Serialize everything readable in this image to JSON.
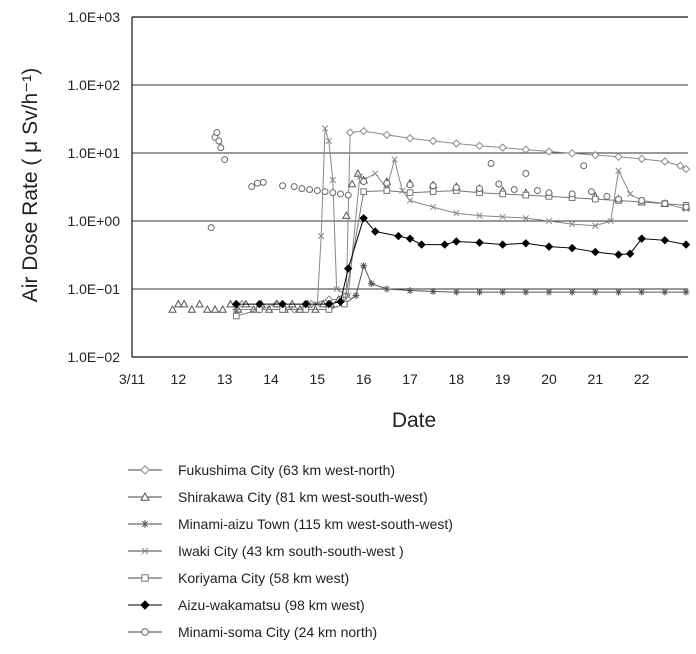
{
  "chart_data": {
    "type": "scatter",
    "title": "",
    "xlabel": "Date",
    "ylabel": "Air Dose Rate ( μ Sv/h⁻¹)",
    "yscale": "log",
    "ylim": [
      "1.0E−02",
      "1.0E+03"
    ],
    "yticks": [
      {
        "label": "1.0E+03",
        "value": 1000
      },
      {
        "label": "1.0E+02",
        "value": 100
      },
      {
        "label": "1.0E+01",
        "value": 10
      },
      {
        "label": "1.0E+00",
        "value": 1
      },
      {
        "label": "1.0E−01",
        "value": 0.1
      },
      {
        "label": "1.0E−02",
        "value": 0.01
      }
    ],
    "xlim": [
      "2011-03-11",
      "2011-03-23"
    ],
    "xticks": [
      {
        "label": "3/11",
        "value": "2011-03-11"
      },
      {
        "label": "12",
        "value": "2011-03-12"
      },
      {
        "label": "13",
        "value": "2011-03-13"
      },
      {
        "label": "14",
        "value": "2011-03-14"
      },
      {
        "label": "15",
        "value": "2011-03-15"
      },
      {
        "label": "16",
        "value": "2011-03-16"
      },
      {
        "label": "17",
        "value": "2011-03-17"
      },
      {
        "label": "18",
        "value": "2011-03-18"
      },
      {
        "label": "19",
        "value": "2011-03-19"
      },
      {
        "label": "20",
        "value": "2011-03-20"
      },
      {
        "label": "21",
        "value": "2011-03-21"
      },
      {
        "label": "22",
        "value": "2011-03-22"
      }
    ],
    "grid": "horizontal",
    "legend_position": "bottom",
    "series": [
      {
        "name": "Fukushima City  (63 km west-north)",
        "marker": "diamond",
        "line": true,
        "color": "#8a8a8a",
        "points": [
          [
            "2011-03-13 09:00",
            0.06
          ],
          [
            "2011-03-13 18:00",
            0.05
          ],
          [
            "2011-03-14 03:00",
            0.06
          ],
          [
            "2011-03-14 12:00",
            0.05
          ],
          [
            "2011-03-14 21:00",
            0.06
          ],
          [
            "2011-03-15 06:00",
            0.07
          ],
          [
            "2011-03-15 12:00",
            0.07
          ],
          [
            "2011-03-15 15:00",
            0.08
          ],
          [
            "2011-03-15 17:00",
            20.0
          ],
          [
            "2011-03-16 00:00",
            21.0
          ],
          [
            "2011-03-16 12:00",
            18.5
          ],
          [
            "2011-03-17 00:00",
            16.5
          ],
          [
            "2011-03-17 12:00",
            15.0
          ],
          [
            "2011-03-18 00:00",
            13.8
          ],
          [
            "2011-03-18 12:00",
            12.8
          ],
          [
            "2011-03-19 00:00",
            12.0
          ],
          [
            "2011-03-19 12:00",
            11.2
          ],
          [
            "2011-03-20 00:00",
            10.5
          ],
          [
            "2011-03-20 12:00",
            9.9
          ],
          [
            "2011-03-21 00:00",
            9.3
          ],
          [
            "2011-03-21 12:00",
            8.8
          ],
          [
            "2011-03-22 00:00",
            8.2
          ],
          [
            "2011-03-22 12:00",
            7.5
          ],
          [
            "2011-03-22 20:00",
            6.5
          ],
          [
            "2011-03-22 23:00",
            5.8
          ]
        ]
      },
      {
        "name": "Shirakawa City  (81 km west-south-west)",
        "marker": "triangle",
        "line": false,
        "color": "#555555",
        "points": [
          [
            "2011-03-11 21:00",
            0.05
          ],
          [
            "2011-03-12 00:00",
            0.06
          ],
          [
            "2011-03-12 03:00",
            0.06
          ],
          [
            "2011-03-12 07:00",
            0.05
          ],
          [
            "2011-03-12 11:00",
            0.06
          ],
          [
            "2011-03-12 15:00",
            0.05
          ],
          [
            "2011-03-12 19:00",
            0.05
          ],
          [
            "2011-03-12 23:00",
            0.05
          ],
          [
            "2011-03-13 03:00",
            0.06
          ],
          [
            "2011-03-13 07:00",
            0.05
          ],
          [
            "2011-03-13 11:00",
            0.06
          ],
          [
            "2011-03-13 15:00",
            0.05
          ],
          [
            "2011-03-13 19:00",
            0.06
          ],
          [
            "2011-03-13 23:00",
            0.05
          ],
          [
            "2011-03-14 03:00",
            0.06
          ],
          [
            "2011-03-14 07:00",
            0.05
          ],
          [
            "2011-03-14 11:00",
            0.06
          ],
          [
            "2011-03-14 15:00",
            0.05
          ],
          [
            "2011-03-14 19:00",
            0.06
          ],
          [
            "2011-03-14 23:00",
            0.05
          ],
          [
            "2011-03-15 03:00",
            0.06
          ],
          [
            "2011-03-15 07:00",
            0.06
          ],
          [
            "2011-03-15 11:00",
            0.07
          ],
          [
            "2011-03-15 15:00",
            1.2
          ],
          [
            "2011-03-15 18:00",
            3.5
          ],
          [
            "2011-03-15 21:00",
            5.0
          ],
          [
            "2011-03-16 00:00",
            4.0
          ],
          [
            "2011-03-16 12:00",
            3.8
          ],
          [
            "2011-03-17 00:00",
            3.6
          ],
          [
            "2011-03-17 12:00",
            3.4
          ],
          [
            "2011-03-18 00:00",
            3.2
          ],
          [
            "2011-03-18 12:00",
            3.0
          ],
          [
            "2011-03-19 00:00",
            2.8
          ],
          [
            "2011-03-19 12:00",
            2.6
          ],
          [
            "2011-03-20 00:00",
            2.5
          ],
          [
            "2011-03-20 12:00",
            2.4
          ],
          [
            "2011-03-21 00:00",
            2.3
          ],
          [
            "2011-03-21 12:00",
            2.1
          ],
          [
            "2011-03-22 00:00",
            1.9
          ],
          [
            "2011-03-22 12:00",
            1.8
          ],
          [
            "2011-03-22 23:00",
            1.6
          ]
        ]
      },
      {
        "name": "Minami-aizu Town  (115 km west-south-west)",
        "marker": "asterisk",
        "line": true,
        "color": "#555555",
        "points": [
          [
            "2011-03-13 06:00",
            0.05
          ],
          [
            "2011-03-13 18:00",
            0.05
          ],
          [
            "2011-03-14 06:00",
            0.05
          ],
          [
            "2011-03-14 18:00",
            0.05
          ],
          [
            "2011-03-15 06:00",
            0.05
          ],
          [
            "2011-03-15 14:00",
            0.06
          ],
          [
            "2011-03-15 20:00",
            0.08
          ],
          [
            "2011-03-16 00:00",
            0.22
          ],
          [
            "2011-03-16 04:00",
            0.12
          ],
          [
            "2011-03-16 12:00",
            0.1
          ],
          [
            "2011-03-17 00:00",
            0.095
          ],
          [
            "2011-03-17 12:00",
            0.092
          ],
          [
            "2011-03-18 00:00",
            0.09
          ],
          [
            "2011-03-18 12:00",
            0.09
          ],
          [
            "2011-03-19 00:00",
            0.09
          ],
          [
            "2011-03-19 12:00",
            0.09
          ],
          [
            "2011-03-20 00:00",
            0.09
          ],
          [
            "2011-03-20 12:00",
            0.09
          ],
          [
            "2011-03-21 00:00",
            0.09
          ],
          [
            "2011-03-21 12:00",
            0.09
          ],
          [
            "2011-03-22 00:00",
            0.09
          ],
          [
            "2011-03-22 12:00",
            0.09
          ],
          [
            "2011-03-22 23:00",
            0.09
          ]
        ]
      },
      {
        "name": "Iwaki City  (43 km south-south-west )",
        "marker": "x",
        "line": true,
        "color": "#888888",
        "points": [
          [
            "2011-03-13 06:00",
            0.05
          ],
          [
            "2011-03-13 18:00",
            0.05
          ],
          [
            "2011-03-14 06:00",
            0.05
          ],
          [
            "2011-03-14 18:00",
            0.05
          ],
          [
            "2011-03-15 00:00",
            0.06
          ],
          [
            "2011-03-15 02:00",
            0.6
          ],
          [
            "2011-03-15 04:00",
            23.0
          ],
          [
            "2011-03-15 06:00",
            15.0
          ],
          [
            "2011-03-15 08:00",
            4.0
          ],
          [
            "2011-03-15 10:00",
            0.1
          ],
          [
            "2011-03-15 16:00",
            0.08
          ],
          [
            "2011-03-15 22:00",
            4.5
          ],
          [
            "2011-03-16 00:00",
            4.0
          ],
          [
            "2011-03-16 06:00",
            5.0
          ],
          [
            "2011-03-16 12:00",
            3.0
          ],
          [
            "2011-03-16 16:00",
            8.0
          ],
          [
            "2011-03-16 20:00",
            2.8
          ],
          [
            "2011-03-17 00:00",
            2.0
          ],
          [
            "2011-03-17 12:00",
            1.6
          ],
          [
            "2011-03-18 00:00",
            1.3
          ],
          [
            "2011-03-18 12:00",
            1.2
          ],
          [
            "2011-03-19 00:00",
            1.15
          ],
          [
            "2011-03-19 12:00",
            1.1
          ],
          [
            "2011-03-20 00:00",
            1.0
          ],
          [
            "2011-03-20 12:00",
            0.9
          ],
          [
            "2011-03-21 00:00",
            0.85
          ],
          [
            "2011-03-21 08:00",
            1.0
          ],
          [
            "2011-03-21 12:00",
            5.5
          ],
          [
            "2011-03-21 18:00",
            2.5
          ],
          [
            "2011-03-22 00:00",
            2.0
          ],
          [
            "2011-03-22 12:00",
            1.8
          ],
          [
            "2011-03-22 23:00",
            1.5
          ]
        ]
      },
      {
        "name": "Koriyama City  (58 km west)",
        "marker": "square",
        "line": true,
        "color": "#777777",
        "points": [
          [
            "2011-03-13 06:00",
            0.04
          ],
          [
            "2011-03-13 18:00",
            0.05
          ],
          [
            "2011-03-14 06:00",
            0.05
          ],
          [
            "2011-03-14 18:00",
            0.05
          ],
          [
            "2011-03-15 06:00",
            0.05
          ],
          [
            "2011-03-15 14:00",
            0.06
          ],
          [
            "2011-03-16 00:00",
            2.7
          ],
          [
            "2011-03-16 12:00",
            2.8
          ],
          [
            "2011-03-17 00:00",
            2.6
          ],
          [
            "2011-03-17 12:00",
            2.7
          ],
          [
            "2011-03-18 00:00",
            2.8
          ],
          [
            "2011-03-18 12:00",
            2.6
          ],
          [
            "2011-03-19 00:00",
            2.5
          ],
          [
            "2011-03-19 12:00",
            2.4
          ],
          [
            "2011-03-20 00:00",
            2.3
          ],
          [
            "2011-03-20 12:00",
            2.2
          ],
          [
            "2011-03-21 00:00",
            2.1
          ],
          [
            "2011-03-21 12:00",
            2.0
          ],
          [
            "2011-03-22 00:00",
            1.9
          ],
          [
            "2011-03-22 12:00",
            1.8
          ],
          [
            "2011-03-22 23:00",
            1.7
          ]
        ]
      },
      {
        "name": "Aizu-wakamatsu  (98 km west)",
        "marker": "filled-diamond",
        "line": true,
        "color": "#000000",
        "points": [
          [
            "2011-03-13 06:00",
            0.06
          ],
          [
            "2011-03-13 18:00",
            0.06
          ],
          [
            "2011-03-14 06:00",
            0.06
          ],
          [
            "2011-03-14 18:00",
            0.06
          ],
          [
            "2011-03-15 06:00",
            0.06
          ],
          [
            "2011-03-15 12:00",
            0.065
          ],
          [
            "2011-03-15 16:00",
            0.2
          ],
          [
            "2011-03-16 00:00",
            1.1
          ],
          [
            "2011-03-16 06:00",
            0.7
          ],
          [
            "2011-03-16 18:00",
            0.6
          ],
          [
            "2011-03-17 00:00",
            0.55
          ],
          [
            "2011-03-17 06:00",
            0.45
          ],
          [
            "2011-03-17 18:00",
            0.45
          ],
          [
            "2011-03-18 00:00",
            0.5
          ],
          [
            "2011-03-18 12:00",
            0.48
          ],
          [
            "2011-03-19 00:00",
            0.45
          ],
          [
            "2011-03-19 12:00",
            0.47
          ],
          [
            "2011-03-20 00:00",
            0.42
          ],
          [
            "2011-03-20 12:00",
            0.4
          ],
          [
            "2011-03-21 00:00",
            0.35
          ],
          [
            "2011-03-21 12:00",
            0.32
          ],
          [
            "2011-03-21 18:00",
            0.33
          ],
          [
            "2011-03-22 00:00",
            0.55
          ],
          [
            "2011-03-22 12:00",
            0.52
          ],
          [
            "2011-03-22 23:00",
            0.45
          ]
        ]
      },
      {
        "name": "Minami-soma City  (24 km north)",
        "marker": "circle",
        "line": false,
        "color": "#666666",
        "points": [
          [
            "2011-03-12 17:00",
            0.8
          ],
          [
            "2011-03-12 19:00",
            17.0
          ],
          [
            "2011-03-12 20:00",
            20.0
          ],
          [
            "2011-03-12 21:00",
            15.0
          ],
          [
            "2011-03-12 22:00",
            12.0
          ],
          [
            "2011-03-13 00:00",
            8.0
          ],
          [
            "2011-03-13 14:00",
            3.2
          ],
          [
            "2011-03-13 17:00",
            3.6
          ],
          [
            "2011-03-13 20:00",
            3.7
          ],
          [
            "2011-03-14 06:00",
            3.3
          ],
          [
            "2011-03-14 12:00",
            3.2
          ],
          [
            "2011-03-14 16:00",
            3.0
          ],
          [
            "2011-03-14 20:00",
            2.9
          ],
          [
            "2011-03-15 00:00",
            2.8
          ],
          [
            "2011-03-15 04:00",
            2.7
          ],
          [
            "2011-03-15 08:00",
            2.6
          ],
          [
            "2011-03-15 12:00",
            2.5
          ],
          [
            "2011-03-15 16:00",
            2.4
          ],
          [
            "2011-03-16 00:00",
            3.8
          ],
          [
            "2011-03-16 12:00",
            3.6
          ],
          [
            "2011-03-17 00:00",
            3.4
          ],
          [
            "2011-03-17 12:00",
            3.3
          ],
          [
            "2011-03-18 00:00",
            3.1
          ],
          [
            "2011-03-18 12:00",
            3.0
          ],
          [
            "2011-03-18 18:00",
            7.0
          ],
          [
            "2011-03-18 22:00",
            3.5
          ],
          [
            "2011-03-19 06:00",
            2.9
          ],
          [
            "2011-03-19 12:00",
            5.0
          ],
          [
            "2011-03-19 18:00",
            2.8
          ],
          [
            "2011-03-20 00:00",
            2.6
          ],
          [
            "2011-03-20 12:00",
            2.5
          ],
          [
            "2011-03-20 18:00",
            6.5
          ],
          [
            "2011-03-20 22:00",
            2.7
          ],
          [
            "2011-03-21 06:00",
            2.3
          ],
          [
            "2011-03-21 12:00",
            2.1
          ],
          [
            "2011-03-22 00:00",
            2.0
          ],
          [
            "2011-03-22 12:00",
            1.8
          ],
          [
            "2011-03-22 23:00",
            1.6
          ]
        ]
      }
    ]
  }
}
